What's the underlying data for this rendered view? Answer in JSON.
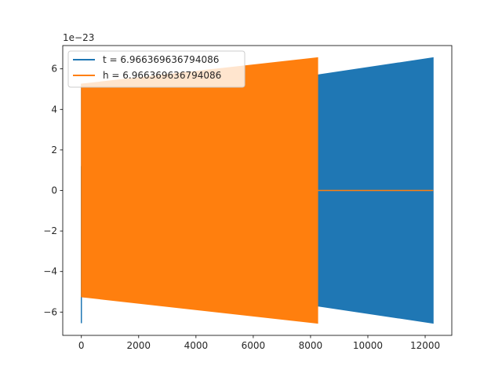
{
  "chart_data": {
    "type": "line",
    "title": "",
    "xlabel": "",
    "ylabel": "",
    "y_offset_label": "1e−23",
    "xlim": [
      -650,
      12930
    ],
    "ylim": [
      -7.15,
      7.15
    ],
    "x_ticks": [
      0,
      2000,
      4000,
      6000,
      8000,
      10000,
      12000
    ],
    "x_tick_labels": [
      "0",
      "2000",
      "4000",
      "6000",
      "8000",
      "10000",
      "12000"
    ],
    "y_ticks": [
      -6,
      -4,
      -2,
      0,
      2,
      4,
      6
    ],
    "y_tick_labels": [
      "−6",
      "−4",
      "−2",
      "0",
      "2",
      "4",
      "6"
    ],
    "grid": false,
    "legend_position": "upper left",
    "series": [
      {
        "name": "t = 6.966369636794086",
        "color": "#1f77b4",
        "description": "dense oscillation, envelope",
        "envelope_x": [
          0,
          8250,
          12280
        ],
        "envelope_upper": [
          5.25,
          5.7,
          6.55
        ],
        "envelope_lower": [
          -5.25,
          -5.7,
          -6.55
        ],
        "spike": {
          "x": 0,
          "min": -6.55,
          "max": 1.2
        }
      },
      {
        "name": "h = 6.966369636794086",
        "color": "#ff7f0e",
        "description": "dense oscillation, envelope then zero",
        "envelope_x": [
          0,
          8250
        ],
        "envelope_upper": [
          5.25,
          6.55
        ],
        "envelope_lower": [
          -5.25,
          -6.55
        ],
        "zero_after": [
          8250,
          12280
        ]
      }
    ]
  }
}
